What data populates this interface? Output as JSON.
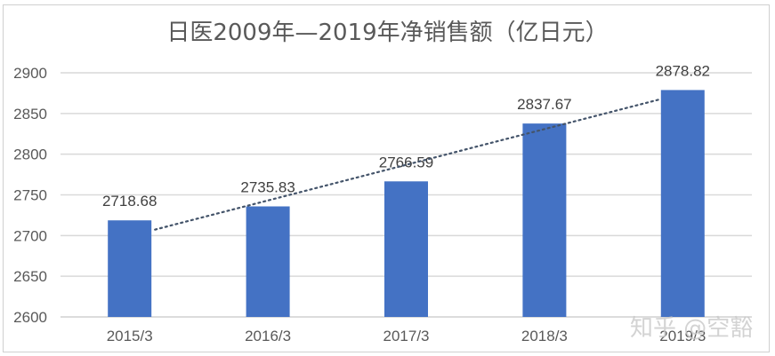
{
  "chart_data": {
    "type": "bar",
    "title": "日医2009年—2019年净销售额（亿日元）",
    "categories": [
      "2015/3",
      "2016/3",
      "2017/3",
      "2018/3",
      "2019/3"
    ],
    "values": [
      2718.68,
      2735.83,
      2766.59,
      2837.67,
      2878.82
    ],
    "data_labels": [
      "2718.68",
      "2735.83",
      "2766.59",
      "2837.67",
      "2878.82"
    ],
    "xlabel": "",
    "ylabel": "",
    "ylim": [
      2600,
      2900
    ],
    "yticks": [
      2600,
      2650,
      2700,
      2750,
      2800,
      2850,
      2900
    ],
    "grid": true,
    "legend": "none",
    "trendline": {
      "type": "linear",
      "style": "dotted",
      "color": "#44546A"
    },
    "bar_color": "#4472C4"
  },
  "watermark": "知乎 @空豁"
}
